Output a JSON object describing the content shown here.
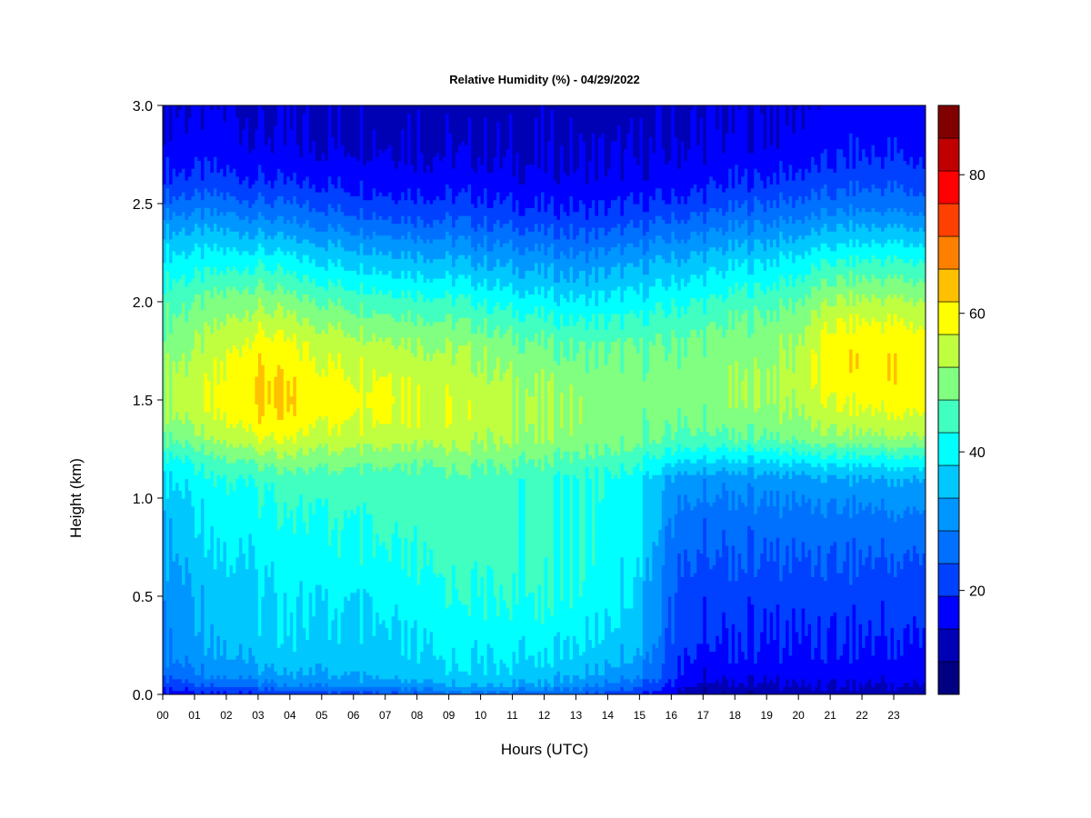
{
  "chart_data": {
    "type": "heatmap",
    "title": "Relative Humidity (%) - 04/29/2022",
    "xlabel": "Hours (UTC)",
    "ylabel": "Height (km)",
    "xlim": [
      0,
      24
    ],
    "ylim": [
      0.0,
      3.0
    ],
    "x_ticks": [
      "00",
      "01",
      "02",
      "03",
      "04",
      "05",
      "06",
      "07",
      "08",
      "09",
      "10",
      "11",
      "12",
      "13",
      "14",
      "15",
      "16",
      "17",
      "18",
      "19",
      "20",
      "21",
      "22",
      "23"
    ],
    "y_ticks": [
      "0.0",
      "0.5",
      "1.0",
      "1.5",
      "2.0",
      "2.5",
      "3.0"
    ],
    "colorbar": {
      "min": 5,
      "max": 90,
      "step": 5,
      "tick_values": [
        20,
        40,
        60,
        80
      ],
      "tick_labels": [
        "20",
        "40",
        "60",
        "80"
      ],
      "colors": [
        "#000080",
        "#0000b4",
        "#0000ff",
        "#0040ff",
        "#0070ff",
        "#0096ff",
        "#00c8ff",
        "#00ffff",
        "#40ffc0",
        "#80ff80",
        "#c0ff40",
        "#ffff00",
        "#ffc000",
        "#ff8000",
        "#ff4000",
        "#ff0000",
        "#c00000",
        "#800000"
      ]
    },
    "profile_heights_km": [
      0.0,
      0.05,
      0.1,
      0.2,
      0.3,
      0.5,
      0.7,
      0.9,
      1.1,
      1.2,
      1.3,
      1.4,
      1.5,
      1.6,
      1.7,
      1.8,
      1.9,
      2.0,
      2.1,
      2.2,
      2.3,
      2.4,
      2.5,
      2.6,
      2.7,
      2.8,
      3.0
    ],
    "profiles": [
      {
        "hour": 0,
        "rh": [
          18,
          22,
          27,
          30,
          31,
          32,
          34,
          36,
          40,
          44,
          50,
          54,
          56,
          55,
          54,
          52,
          50,
          48,
          45,
          42,
          38,
          33,
          27,
          22,
          19,
          17,
          15
        ]
      },
      {
        "hour": 1,
        "rh": [
          18,
          24,
          29,
          32,
          33,
          35,
          37,
          39,
          42,
          46,
          52,
          56,
          58,
          57,
          56,
          54,
          52,
          50,
          46,
          42,
          38,
          33,
          27,
          22,
          19,
          17,
          15
        ]
      },
      {
        "hour": 2,
        "rh": [
          19,
          26,
          31,
          35,
          36,
          38,
          40,
          42,
          45,
          50,
          56,
          60,
          62,
          61,
          60,
          58,
          55,
          52,
          48,
          43,
          38,
          33,
          27,
          22,
          19,
          17,
          15
        ]
      },
      {
        "hour": 3,
        "rh": [
          20,
          28,
          33,
          37,
          38,
          39,
          41,
          43,
          46,
          52,
          60,
          64,
          66,
          66,
          64,
          62,
          58,
          54,
          49,
          44,
          38,
          32,
          26,
          21,
          18,
          16,
          14
        ]
      },
      {
        "hour": 4,
        "rh": [
          21,
          30,
          34,
          38,
          39,
          40,
          42,
          44,
          47,
          53,
          59,
          63,
          65,
          64,
          62,
          60,
          56,
          52,
          47,
          42,
          36,
          30,
          25,
          20,
          17,
          15,
          14
        ]
      },
      {
        "hour": 5,
        "rh": [
          22,
          31,
          35,
          38,
          39,
          41,
          43,
          45,
          48,
          53,
          58,
          61,
          63,
          62,
          60,
          58,
          54,
          50,
          45,
          40,
          35,
          29,
          24,
          20,
          17,
          15,
          14
        ]
      },
      {
        "hour": 6,
        "rh": [
          23,
          32,
          36,
          38,
          39,
          41,
          44,
          46,
          48,
          53,
          58,
          61,
          62,
          61,
          59,
          57,
          53,
          49,
          44,
          39,
          34,
          28,
          23,
          19,
          17,
          15,
          14
        ]
      },
      {
        "hour": 7,
        "rh": [
          24,
          33,
          37,
          39,
          40,
          42,
          45,
          47,
          48,
          53,
          58,
          61,
          62,
          61,
          59,
          56,
          52,
          48,
          43,
          38,
          33,
          27,
          22,
          19,
          17,
          15,
          14
        ]
      },
      {
        "hour": 8,
        "rh": [
          25,
          34,
          38,
          40,
          41,
          43,
          46,
          47,
          48,
          52,
          57,
          60,
          60,
          59,
          57,
          55,
          51,
          47,
          42,
          37,
          32,
          26,
          22,
          18,
          16,
          15,
          14
        ]
      },
      {
        "hour": 9,
        "rh": [
          27,
          35,
          38,
          41,
          42,
          44,
          47,
          48,
          48,
          52,
          57,
          59,
          59,
          58,
          56,
          54,
          50,
          46,
          41,
          36,
          31,
          26,
          21,
          18,
          16,
          14,
          13
        ]
      },
      {
        "hour": 10,
        "rh": [
          28,
          36,
          39,
          41,
          42,
          45,
          47,
          48,
          48,
          52,
          56,
          58,
          58,
          57,
          55,
          53,
          49,
          45,
          40,
          35,
          30,
          25,
          21,
          18,
          16,
          14,
          13
        ]
      },
      {
        "hour": 11,
        "rh": [
          27,
          35,
          38,
          41,
          42,
          45,
          47,
          47,
          47,
          51,
          55,
          56,
          56,
          55,
          53,
          51,
          47,
          43,
          38,
          34,
          29,
          24,
          20,
          17,
          15,
          14,
          13
        ]
      },
      {
        "hour": 12,
        "rh": [
          26,
          34,
          37,
          40,
          42,
          45,
          46,
          46,
          46,
          50,
          54,
          55,
          55,
          54,
          52,
          50,
          46,
          42,
          37,
          33,
          28,
          23,
          19,
          17,
          15,
          14,
          13
        ]
      },
      {
        "hour": 13,
        "rh": [
          25,
          32,
          36,
          39,
          41,
          44,
          45,
          45,
          45,
          49,
          53,
          54,
          54,
          53,
          51,
          49,
          45,
          41,
          36,
          32,
          27,
          23,
          19,
          17,
          15,
          14,
          13
        ]
      },
      {
        "hour": 14,
        "rh": [
          22,
          29,
          33,
          37,
          39,
          42,
          43,
          43,
          44,
          48,
          52,
          53,
          53,
          52,
          51,
          49,
          45,
          41,
          37,
          33,
          28,
          23,
          19,
          17,
          15,
          14,
          13
        ]
      },
      {
        "hour": 15,
        "rh": [
          20,
          26,
          30,
          34,
          36,
          38,
          40,
          41,
          42,
          46,
          51,
          52,
          52,
          52,
          51,
          49,
          46,
          42,
          38,
          34,
          29,
          24,
          20,
          17,
          15,
          14,
          13
        ]
      },
      {
        "hour": 16,
        "rh": [
          15,
          19,
          22,
          23,
          24,
          25,
          27,
          30,
          34,
          42,
          49,
          51,
          52,
          52,
          51,
          50,
          47,
          44,
          40,
          36,
          31,
          26,
          21,
          18,
          16,
          15,
          14
        ]
      },
      {
        "hour": 17,
        "rh": [
          10,
          13,
          16,
          18,
          20,
          22,
          24,
          27,
          32,
          40,
          48,
          51,
          52,
          53,
          52,
          51,
          48,
          45,
          41,
          37,
          32,
          27,
          22,
          19,
          17,
          15,
          14
        ]
      },
      {
        "hour": 18,
        "rh": [
          11,
          14,
          17,
          19,
          20,
          22,
          25,
          27,
          32,
          40,
          49,
          52,
          54,
          54,
          53,
          52,
          50,
          47,
          43,
          39,
          34,
          29,
          24,
          20,
          18,
          16,
          15
        ]
      },
      {
        "hour": 19,
        "rh": [
          11,
          14,
          17,
          19,
          20,
          22,
          25,
          28,
          33,
          41,
          50,
          53,
          55,
          55,
          54,
          53,
          51,
          48,
          44,
          40,
          35,
          30,
          25,
          21,
          18,
          16,
          15
        ]
      },
      {
        "hour": 20,
        "rh": [
          12,
          15,
          17,
          19,
          20,
          22,
          25,
          28,
          33,
          42,
          51,
          54,
          56,
          57,
          56,
          55,
          53,
          50,
          46,
          42,
          37,
          31,
          26,
          22,
          19,
          17,
          15
        ]
      },
      {
        "hour": 21,
        "rh": [
          12,
          15,
          17,
          19,
          20,
          22,
          25,
          28,
          34,
          43,
          53,
          57,
          60,
          62,
          63,
          62,
          59,
          55,
          50,
          45,
          39,
          33,
          27,
          23,
          20,
          18,
          16
        ]
      },
      {
        "hour": 22,
        "rh": [
          12,
          15,
          17,
          19,
          20,
          22,
          25,
          28,
          34,
          43,
          53,
          58,
          61,
          63,
          64,
          63,
          60,
          56,
          51,
          46,
          40,
          34,
          28,
          24,
          21,
          19,
          17
        ]
      },
      {
        "hour": 23,
        "rh": [
          12,
          15,
          17,
          19,
          20,
          22,
          25,
          29,
          35,
          44,
          54,
          59,
          62,
          64,
          64,
          63,
          60,
          56,
          51,
          46,
          40,
          34,
          28,
          24,
          21,
          19,
          17
        ]
      },
      {
        "hour": 24,
        "rh": [
          12,
          15,
          17,
          19,
          20,
          22,
          25,
          29,
          35,
          44,
          54,
          59,
          62,
          63,
          63,
          62,
          59,
          55,
          50,
          45,
          39,
          33,
          27,
          23,
          20,
          18,
          16
        ]
      }
    ]
  }
}
